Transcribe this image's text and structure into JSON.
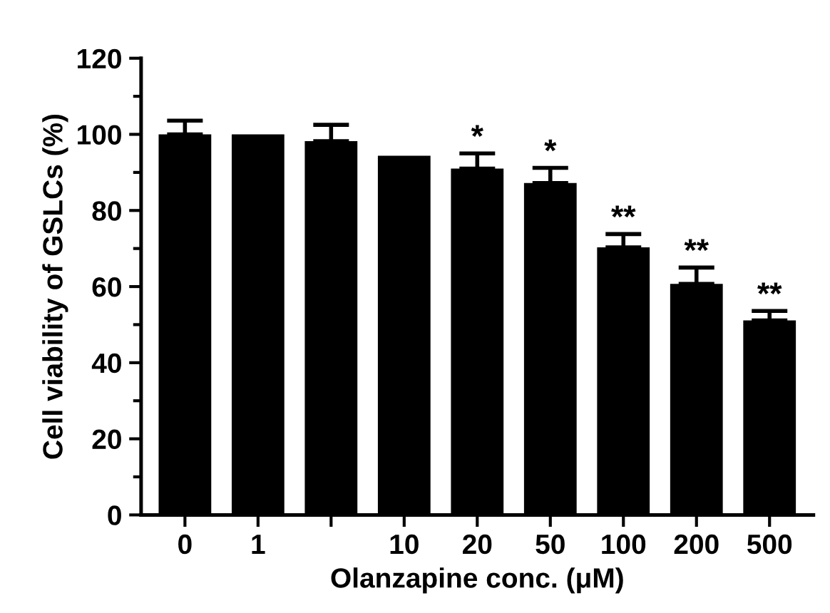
{
  "chart_data": {
    "type": "bar",
    "xlabel": "Olanzapine conc. (μM)",
    "ylabel": "Cell viability of GSLCs (%)",
    "categories": [
      "0",
      "1",
      null,
      "10",
      "20",
      "50",
      "100",
      "200",
      "500"
    ],
    "values": [
      100,
      100,
      98.2,
      94.4,
      91,
      87.2,
      70.3,
      60.7,
      51.1
    ],
    "errors": [
      3.6,
      null,
      4.3,
      null,
      4,
      4,
      3.5,
      4.3,
      2.5
    ],
    "color": "#000000",
    "ylim": [
      0,
      120
    ],
    "yticks": [
      0,
      20,
      40,
      60,
      80,
      100,
      120
    ],
    "grid": false,
    "annotations": [
      {
        "text": "*",
        "x": "20",
        "y": 95
      },
      {
        "text": "*",
        "x": "50",
        "y": 91.2
      },
      {
        "text": "**",
        "x": "100",
        "y": 73.8
      },
      {
        "text": "**",
        "x": "200",
        "y": 65
      },
      {
        "text": "**",
        "x": "500",
        "y": 53.6
      }
    ]
  }
}
